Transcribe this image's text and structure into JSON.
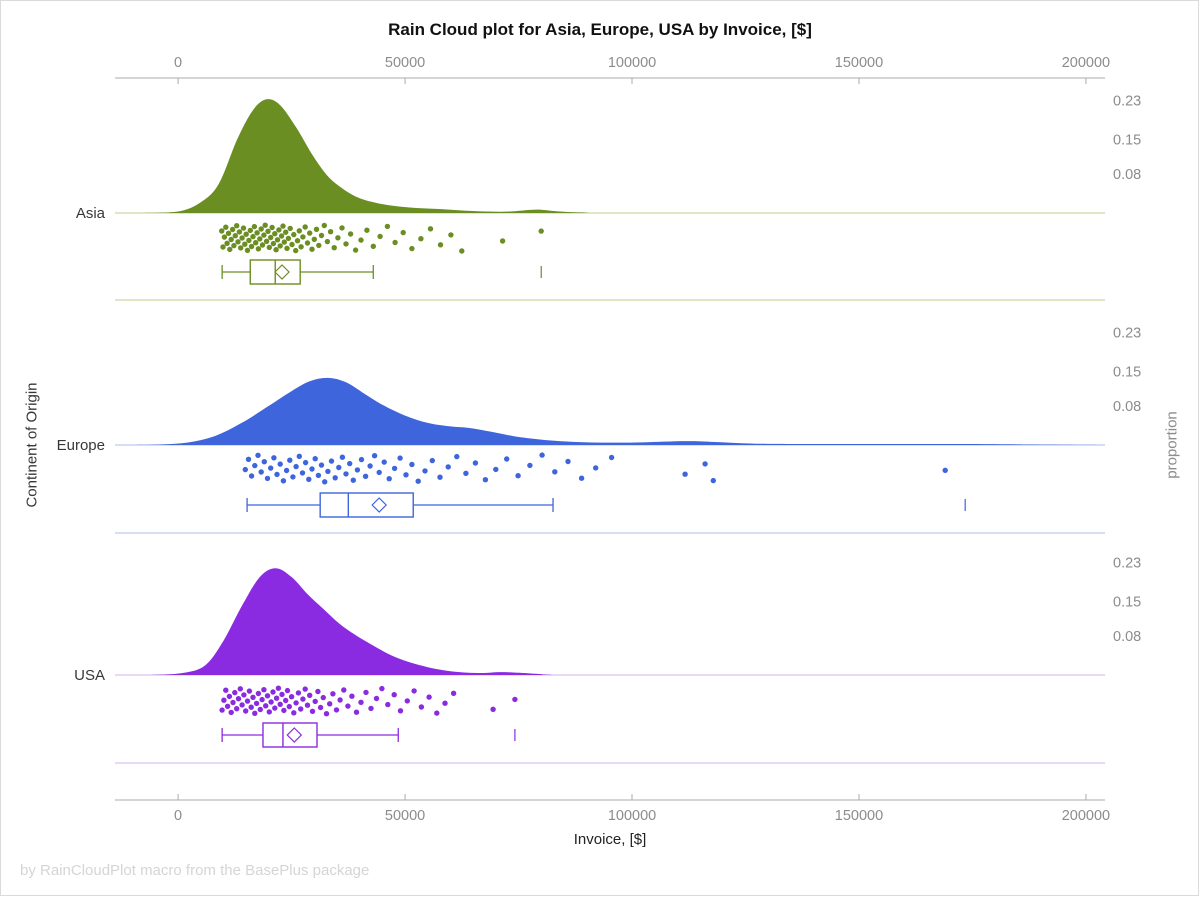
{
  "title": "Rain Cloud plot for Asia, Europe, USA by Invoice, [$]",
  "footer": "by RainCloudPlot macro from the BasePlus package",
  "x_axis": {
    "label": "Invoice, [$]",
    "tick_labels": [
      "0",
      "50000",
      "100000",
      "150000",
      "200000"
    ],
    "tick_values": [
      0,
      50000,
      100000,
      150000,
      200000
    ],
    "range": [
      -13900,
      204200
    ]
  },
  "y_axis_left_label": "Continent of Origin",
  "y_axis_right_label": "proportion",
  "chart_data": {
    "type": "raincloud",
    "xlabel": "Invoice, [$]",
    "proportion_tick_labels": [
      "0.23",
      "0.15",
      "0.08"
    ],
    "proportion_tick_values": [
      0.23,
      0.15,
      0.08
    ],
    "groups": [
      {
        "label": "Asia",
        "color": "#6B8E23",
        "light_color": "#C9D6A4",
        "density": [
          [
            -8000,
            0
          ],
          [
            0,
            0.003
          ],
          [
            5000,
            0.022
          ],
          [
            9000,
            0.06
          ],
          [
            13000,
            0.15
          ],
          [
            16500,
            0.21
          ],
          [
            19500,
            0.232
          ],
          [
            22500,
            0.22
          ],
          [
            26000,
            0.175
          ],
          [
            29500,
            0.12
          ],
          [
            33000,
            0.075
          ],
          [
            36500,
            0.048
          ],
          [
            40000,
            0.03
          ],
          [
            44000,
            0.02
          ],
          [
            48000,
            0.014
          ],
          [
            53000,
            0.01
          ],
          [
            58000,
            0.008
          ],
          [
            63000,
            0.005
          ],
          [
            68000,
            0.003
          ],
          [
            73000,
            0.003
          ],
          [
            79000,
            0.007
          ],
          [
            84000,
            0.003
          ],
          [
            90000,
            0.001
          ],
          [
            100000,
            0
          ],
          [
            204000,
            0
          ]
        ],
        "box": {
          "whisker_low": 9700,
          "q1": 15900,
          "median": 21400,
          "q3": 26900,
          "whisker_high": 43000,
          "mean": 22900,
          "outliers": [
            80000
          ]
        },
        "points": [
          9600,
          9900,
          10200,
          10500,
          10800,
          11100,
          11400,
          11700,
          12000,
          12300,
          12600,
          12900,
          13200,
          13500,
          13800,
          14100,
          14400,
          14700,
          15000,
          15300,
          15600,
          15900,
          16200,
          16500,
          16800,
          17100,
          17400,
          17700,
          18000,
          18300,
          18600,
          18900,
          19200,
          19500,
          19800,
          20100,
          20400,
          20700,
          21000,
          21300,
          21600,
          21900,
          22200,
          22500,
          22800,
          23100,
          23400,
          23700,
          24000,
          24300,
          24700,
          25100,
          25500,
          25900,
          26300,
          26700,
          27100,
          27500,
          28000,
          28500,
          29000,
          29500,
          30000,
          30500,
          31000,
          31600,
          32200,
          32900,
          33600,
          34400,
          35200,
          36100,
          37000,
          38000,
          39100,
          40300,
          41600,
          43000,
          44500,
          46100,
          47800,
          49600,
          51500,
          53500,
          55600,
          57800,
          60100,
          62500,
          71500,
          80000
        ]
      },
      {
        "label": "Europe",
        "color": "#3F65DC",
        "light_color": "#BDCAF1",
        "density": [
          [
            -10000,
            0
          ],
          [
            -4000,
            0.001
          ],
          [
            2000,
            0.005
          ],
          [
            8000,
            0.018
          ],
          [
            14000,
            0.045
          ],
          [
            20000,
            0.08
          ],
          [
            25000,
            0.11
          ],
          [
            29000,
            0.13
          ],
          [
            33000,
            0.137
          ],
          [
            37000,
            0.128
          ],
          [
            41000,
            0.105
          ],
          [
            45000,
            0.082
          ],
          [
            50000,
            0.06
          ],
          [
            55000,
            0.045
          ],
          [
            60000,
            0.038
          ],
          [
            64000,
            0.035
          ],
          [
            69000,
            0.027
          ],
          [
            74000,
            0.018
          ],
          [
            80000,
            0.011
          ],
          [
            86000,
            0.007
          ],
          [
            93000,
            0.005
          ],
          [
            100000,
            0.005
          ],
          [
            107000,
            0.007
          ],
          [
            113000,
            0.008
          ],
          [
            119000,
            0.006
          ],
          [
            126000,
            0.003
          ],
          [
            134000,
            0.002
          ],
          [
            145000,
            0.002
          ],
          [
            160000,
            0.002
          ],
          [
            175000,
            0.002
          ],
          [
            188000,
            0.001
          ],
          [
            204000,
            0
          ]
        ],
        "box": {
          "whisker_low": 15200,
          "q1": 31300,
          "median": 37500,
          "q3": 51800,
          "whisker_high": 82600,
          "mean": 44300,
          "outliers": [
            173400
          ]
        },
        "points": [
          14800,
          15500,
          16200,
          16900,
          17600,
          18300,
          19000,
          19700,
          20400,
          21100,
          21800,
          22500,
          23200,
          23900,
          24600,
          25300,
          26000,
          26700,
          27400,
          28100,
          28800,
          29500,
          30200,
          30900,
          31600,
          32300,
          33000,
          33800,
          34600,
          35400,
          36200,
          37000,
          37800,
          38600,
          39500,
          40400,
          41300,
          42300,
          43300,
          44300,
          45400,
          46500,
          47700,
          48900,
          50200,
          51500,
          52900,
          54400,
          56000,
          57700,
          59500,
          61400,
          63400,
          65500,
          67700,
          70000,
          72400,
          74900,
          77500,
          80200,
          83000,
          85900,
          88900,
          92000,
          95500,
          111700,
          116100,
          117900,
          169000
        ]
      },
      {
        "label": "USA",
        "color": "#8A2BE2",
        "light_color": "#D9C0F0",
        "density": [
          [
            -6000,
            0
          ],
          [
            1000,
            0.004
          ],
          [
            6000,
            0.02
          ],
          [
            10000,
            0.07
          ],
          [
            14000,
            0.14
          ],
          [
            18000,
            0.2
          ],
          [
            21500,
            0.218
          ],
          [
            25000,
            0.2
          ],
          [
            28500,
            0.165
          ],
          [
            32000,
            0.135
          ],
          [
            35500,
            0.105
          ],
          [
            39000,
            0.082
          ],
          [
            43000,
            0.06
          ],
          [
            47000,
            0.04
          ],
          [
            51000,
            0.026
          ],
          [
            55000,
            0.016
          ],
          [
            59000,
            0.009
          ],
          [
            63000,
            0.005
          ],
          [
            67000,
            0.004
          ],
          [
            71000,
            0.006
          ],
          [
            76000,
            0.004
          ],
          [
            82000,
            0.001
          ],
          [
            90000,
            0
          ],
          [
            204000,
            0
          ]
        ],
        "box": {
          "whisker_low": 9700,
          "q1": 18700,
          "median": 23100,
          "q3": 30600,
          "whisker_high": 48500,
          "mean": 25600,
          "outliers": [
            74200
          ]
        },
        "points": [
          9700,
          10100,
          10500,
          10900,
          11300,
          11700,
          12100,
          12500,
          12900,
          13300,
          13700,
          14100,
          14500,
          14900,
          15300,
          15700,
          16100,
          16500,
          16900,
          17300,
          17700,
          18100,
          18500,
          18900,
          19300,
          19700,
          20100,
          20500,
          20900,
          21300,
          21700,
          22100,
          22500,
          22900,
          23300,
          23700,
          24100,
          24500,
          25000,
          25500,
          26000,
          26500,
          27000,
          27500,
          28000,
          28500,
          29000,
          29600,
          30200,
          30800,
          31400,
          32000,
          32700,
          33400,
          34100,
          34900,
          35700,
          36500,
          37400,
          38300,
          39300,
          40300,
          41400,
          42500,
          43700,
          44900,
          46200,
          47600,
          49000,
          50500,
          52000,
          53600,
          55300,
          57000,
          58800,
          60700,
          69400,
          74200
        ]
      }
    ]
  },
  "colors": {
    "axis_line": "#ABABAB",
    "tick_text": "#8C8C8C",
    "category_text": "#383838",
    "frame_border": "#DADADA"
  }
}
